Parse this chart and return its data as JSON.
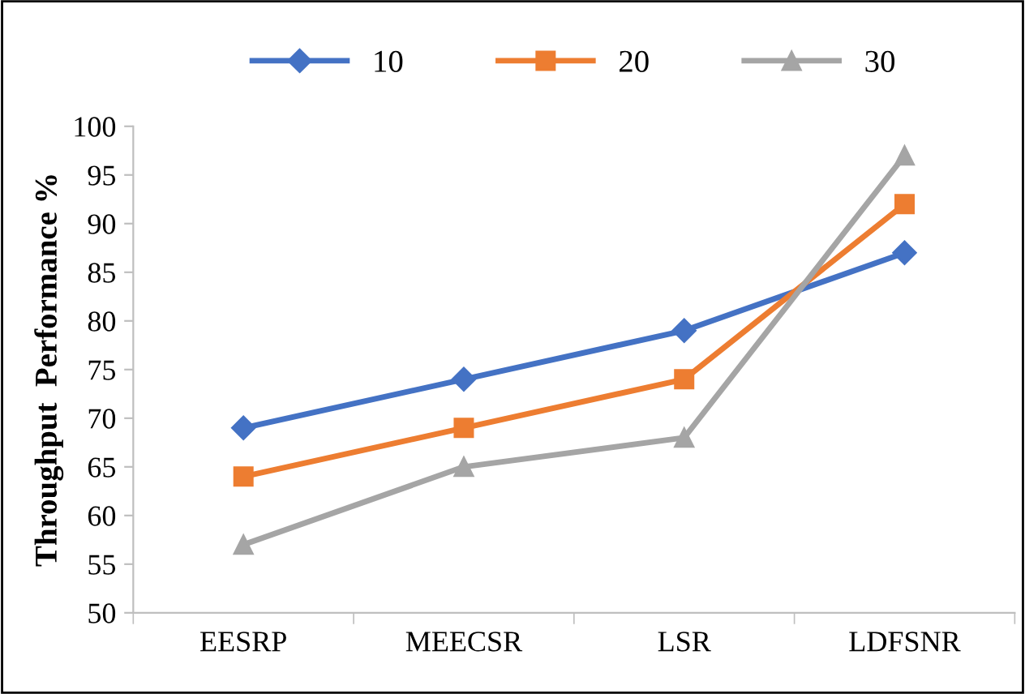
{
  "chart_data": {
    "type": "line",
    "ylabel": "Throughput  Performance %",
    "categories": [
      "EESRP",
      "MEECSR",
      "LSR",
      "LDFSNR"
    ],
    "series": [
      {
        "name": "10",
        "color": "#4472c4",
        "marker": "diamond",
        "values": [
          69,
          74,
          79,
          87
        ]
      },
      {
        "name": "20",
        "color": "#ed7d31",
        "marker": "square",
        "values": [
          64,
          69,
          74,
          92
        ]
      },
      {
        "name": "30",
        "color": "#a5a5a5",
        "marker": "triangle",
        "values": [
          57,
          65,
          68,
          97
        ]
      }
    ],
    "ylim": [
      50,
      100
    ],
    "yticks": [
      50,
      55,
      60,
      65,
      70,
      75,
      80,
      85,
      90,
      95,
      100
    ],
    "grid": false,
    "legend": "top",
    "line_style": "solid"
  }
}
